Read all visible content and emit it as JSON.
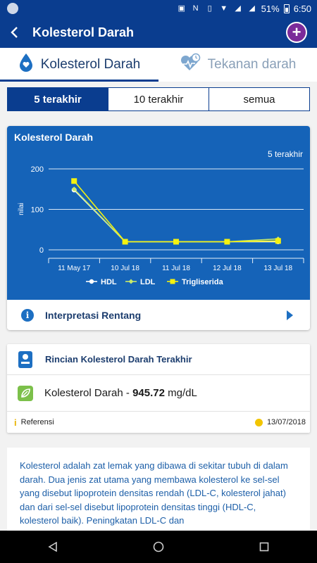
{
  "status_bar": {
    "battery": "51%",
    "time": "6:50"
  },
  "app_bar": {
    "title": "Kolesterol Darah"
  },
  "tabs": [
    {
      "label": "Kolesterol Darah",
      "icon": "blood-drop-icon",
      "active": true
    },
    {
      "label": "Tekanan darah",
      "icon": "heart-pulse-icon",
      "active": false
    }
  ],
  "range": [
    {
      "label": "5 terakhir",
      "active": true
    },
    {
      "label": "10 terakhir",
      "active": false
    },
    {
      "label": "semua",
      "active": false
    }
  ],
  "chart_card": {
    "title": "Kolesterol Darah",
    "range_label": "5 terakhir",
    "interp_label": "Interpretasi Rentang"
  },
  "chart_data": {
    "type": "line",
    "title": "Kolesterol Darah",
    "xlabel": "",
    "ylabel": "nilai",
    "categories": [
      "11 May 17",
      "10 Jul 18",
      "11 Jul 18",
      "12 Jul 18",
      "13 Jul 18"
    ],
    "y_ticks": [
      0,
      100,
      200
    ],
    "ylim": [
      0,
      220
    ],
    "grid": true,
    "legend_position": "bottom",
    "series": [
      {
        "name": "HDL",
        "values": [
          148,
          20,
          20,
          20,
          20
        ],
        "color": "#ffffff",
        "marker": "circle"
      },
      {
        "name": "LDL",
        "values": [
          150,
          20,
          20,
          20,
          27
        ],
        "color": "#c8ea6a",
        "marker": "diamond"
      },
      {
        "name": "Trigliserida",
        "values": [
          170,
          20,
          20,
          20,
          22
        ],
        "color": "#f4f20f",
        "marker": "square"
      }
    ]
  },
  "detail": {
    "title": "Rincian Kolesterol Darah Terakhir",
    "value_label": "Kolesterol Darah - ",
    "value": "945.72",
    "unit": " mg/dL",
    "ref_label": "Referensi",
    "date": "13/07/2018"
  },
  "description": "Kolesterol adalah zat lemak yang dibawa di sekitar tubuh di dalam darah. Dua jenis zat utama yang membawa kolesterol ke sel-sel yang disebut lipoprotein densitas rendah (LDL-C, kolesterol jahat) dan dari sel-sel disebut lipoprotein densitas tinggi (HDL-C, kolesterol baik). Peningkatan LDL-C dan"
}
